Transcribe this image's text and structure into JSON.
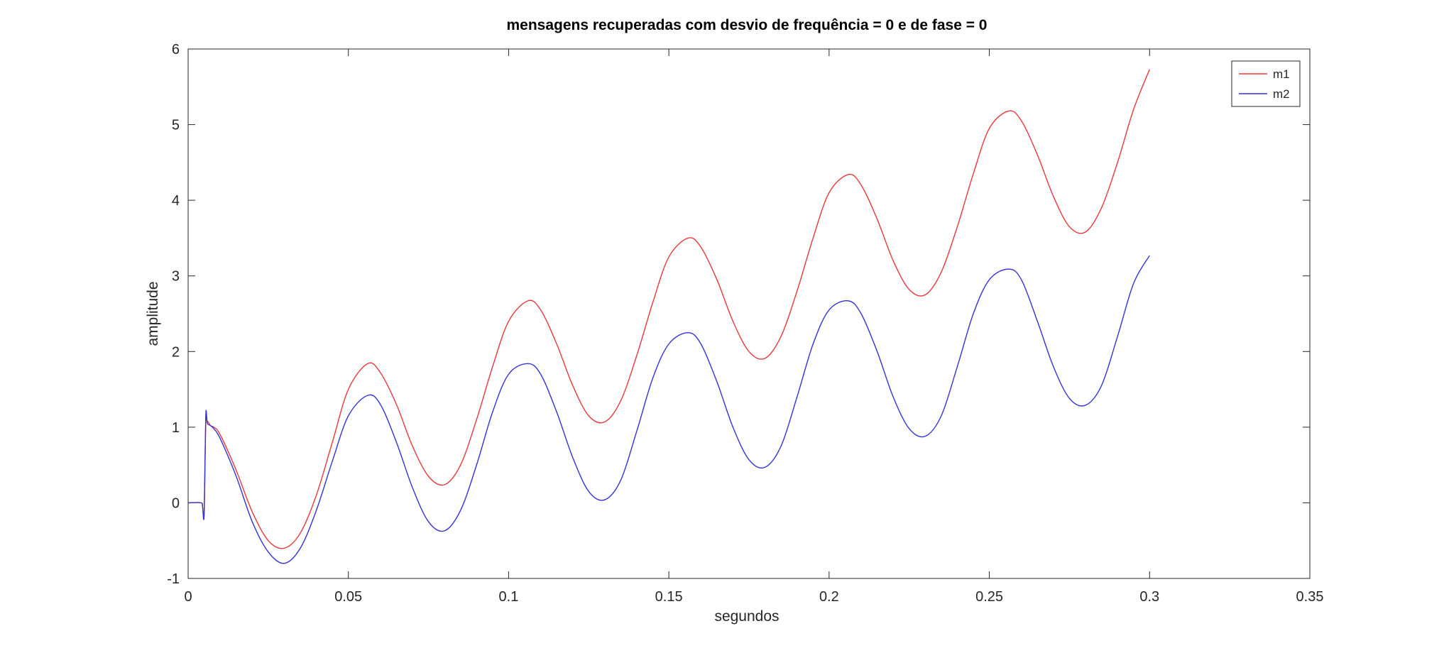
{
  "chart_data": {
    "type": "line",
    "title": "mensagens recuperadas com desvio de frequência = 0 e de fase = 0",
    "xlabel": "segundos",
    "ylabel": "amplitude",
    "xlim": [
      0,
      0.35
    ],
    "ylim": [
      -1,
      6
    ],
    "xticks": [
      0,
      0.05,
      0.1,
      0.15,
      0.2,
      0.25,
      0.3,
      0.35
    ],
    "xtick_labels": [
      "0",
      "0.05",
      "0.1",
      "0.15",
      "0.2",
      "0.25",
      "0.3",
      "0.35"
    ],
    "yticks": [
      -1,
      0,
      1,
      2,
      3,
      4,
      5,
      6
    ],
    "ytick_labels": [
      "-1",
      "0",
      "1",
      "2",
      "3",
      "4",
      "5",
      "6"
    ],
    "grid": false,
    "legend_position": "top-right",
    "series": [
      {
        "name": "m1",
        "color": "#e8383b",
        "x": [
          0,
          0.004,
          0.0045,
          0.005,
          0.0055,
          0.006,
          0.007,
          0.008,
          0.01,
          0.015,
          0.02,
          0.025,
          0.03,
          0.035,
          0.04,
          0.045,
          0.05,
          0.056,
          0.06,
          0.065,
          0.07,
          0.075,
          0.08,
          0.085,
          0.09,
          0.095,
          0.1,
          0.106,
          0.11,
          0.115,
          0.12,
          0.125,
          0.13,
          0.135,
          0.14,
          0.145,
          0.15,
          0.156,
          0.16,
          0.165,
          0.17,
          0.175,
          0.18,
          0.185,
          0.19,
          0.195,
          0.2,
          0.206,
          0.21,
          0.215,
          0.22,
          0.225,
          0.23,
          0.235,
          0.24,
          0.245,
          0.25,
          0.256,
          0.26,
          0.265,
          0.27,
          0.275,
          0.28,
          0.285,
          0.29,
          0.295,
          0.3
        ],
        "y": [
          0,
          0,
          -0.05,
          -0.15,
          1.05,
          1.08,
          1.02,
          1.0,
          0.9,
          0.43,
          -0.12,
          -0.5,
          -0.6,
          -0.4,
          0.1,
          0.8,
          1.5,
          1.84,
          1.72,
          1.3,
          0.75,
          0.35,
          0.24,
          0.5,
          1.1,
          1.8,
          2.4,
          2.67,
          2.55,
          2.1,
          1.55,
          1.15,
          1.07,
          1.35,
          1.95,
          2.65,
          3.25,
          3.5,
          3.38,
          2.95,
          2.4,
          2.0,
          1.91,
          2.2,
          2.8,
          3.5,
          4.1,
          4.34,
          4.2,
          3.75,
          3.2,
          2.82,
          2.75,
          3.05,
          3.65,
          4.35,
          4.95,
          5.18,
          5.05,
          4.6,
          4.05,
          3.65,
          3.58,
          3.9,
          4.5,
          5.2,
          5.73
        ]
      },
      {
        "name": "m2",
        "color": "#3333d6",
        "x": [
          0,
          0.004,
          0.0045,
          0.005,
          0.0055,
          0.006,
          0.007,
          0.008,
          0.01,
          0.015,
          0.02,
          0.025,
          0.03,
          0.035,
          0.04,
          0.045,
          0.05,
          0.056,
          0.06,
          0.065,
          0.07,
          0.075,
          0.08,
          0.085,
          0.09,
          0.095,
          0.1,
          0.106,
          0.11,
          0.115,
          0.12,
          0.125,
          0.13,
          0.135,
          0.14,
          0.145,
          0.15,
          0.156,
          0.16,
          0.165,
          0.17,
          0.175,
          0.18,
          0.185,
          0.19,
          0.195,
          0.2,
          0.206,
          0.21,
          0.215,
          0.22,
          0.225,
          0.23,
          0.235,
          0.24,
          0.245,
          0.25,
          0.256,
          0.26,
          0.265,
          0.27,
          0.275,
          0.28,
          0.285,
          0.29,
          0.295,
          0.3
        ],
        "y": [
          0,
          0,
          -0.05,
          -0.15,
          1.15,
          1.05,
          1.02,
          0.98,
          0.85,
          0.35,
          -0.25,
          -0.65,
          -0.8,
          -0.6,
          -0.1,
          0.55,
          1.15,
          1.42,
          1.3,
          0.8,
          0.2,
          -0.25,
          -0.37,
          -0.1,
          0.5,
          1.2,
          1.7,
          1.84,
          1.7,
          1.2,
          0.6,
          0.15,
          0.04,
          0.3,
          0.95,
          1.65,
          2.1,
          2.25,
          2.1,
          1.6,
          1.0,
          0.57,
          0.47,
          0.75,
          1.4,
          2.1,
          2.55,
          2.67,
          2.5,
          2.0,
          1.4,
          0.98,
          0.88,
          1.15,
          1.8,
          2.5,
          2.95,
          3.09,
          2.95,
          2.4,
          1.8,
          1.38,
          1.29,
          1.55,
          2.2,
          2.9,
          3.27
        ]
      }
    ]
  }
}
